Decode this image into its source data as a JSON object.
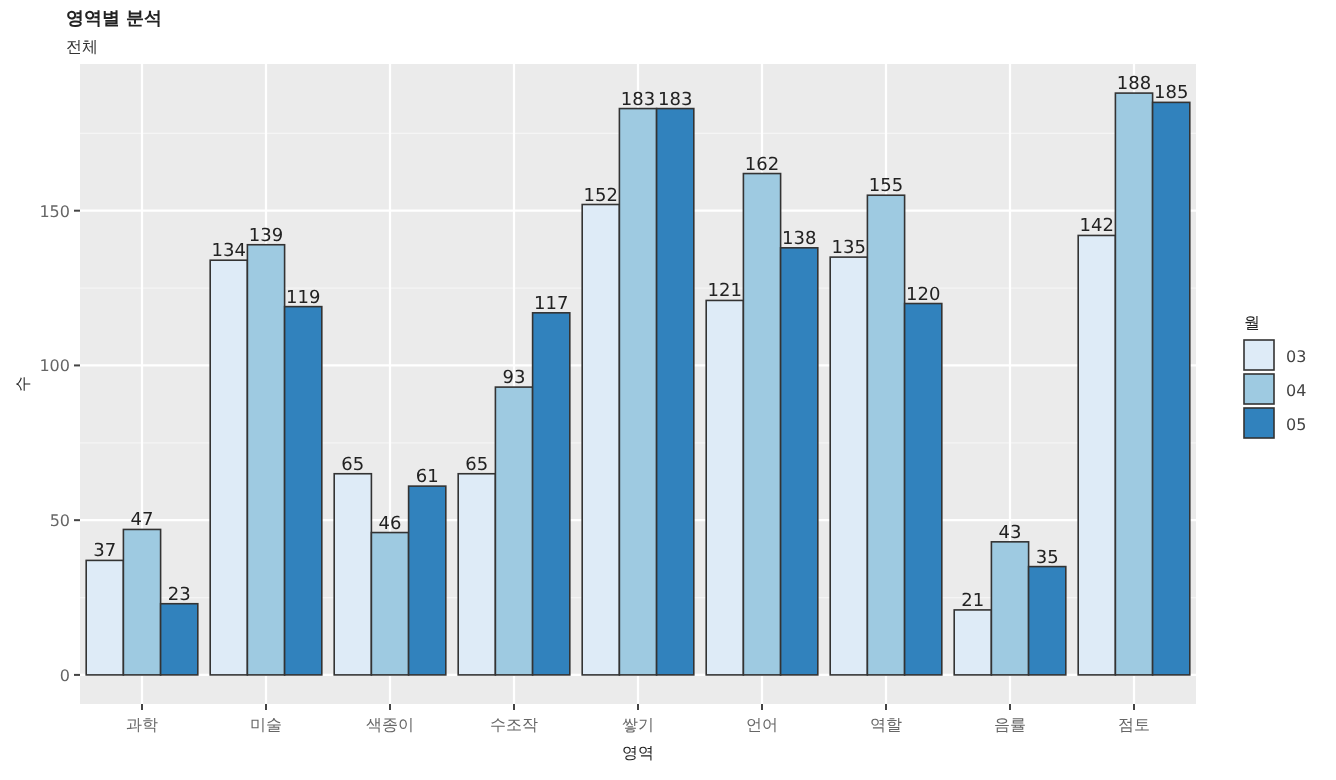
{
  "chart_data": {
    "type": "bar",
    "title": "영역별 분석",
    "subtitle": "전체",
    "xlabel": "영역",
    "ylabel": "수",
    "legend_title": "월",
    "categories": [
      "과학",
      "미술",
      "색종이",
      "수조작",
      "쌓기",
      "언어",
      "역할",
      "음률",
      "점토"
    ],
    "series": [
      {
        "name": "03",
        "color": "#deebf7",
        "values": [
          37,
          134,
          65,
          65,
          152,
          121,
          135,
          21,
          142
        ]
      },
      {
        "name": "04",
        "color": "#9ecae1",
        "values": [
          47,
          139,
          46,
          93,
          183,
          162,
          155,
          43,
          188
        ]
      },
      {
        "name": "05",
        "color": "#3182bd",
        "values": [
          23,
          119,
          61,
          117,
          183,
          138,
          120,
          35,
          185
        ]
      }
    ],
    "ylim": [
      -9.4,
      197.4
    ],
    "yticks": [
      0,
      50,
      100,
      150
    ],
    "grid": true,
    "legend": "right",
    "data_labels": true
  }
}
